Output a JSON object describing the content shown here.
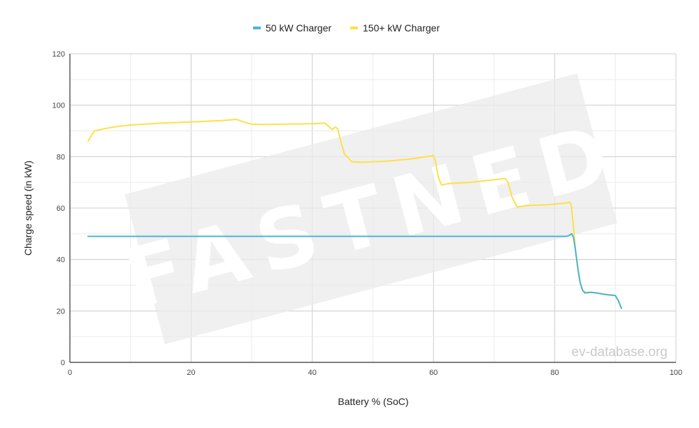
{
  "chart_data": {
    "type": "line",
    "xlabel": "Battery % (SoC)",
    "ylabel": "Charge speed (in kW)",
    "xlim": [
      0,
      100
    ],
    "ylim": [
      0,
      120
    ],
    "x_ticks": [
      0,
      20,
      40,
      60,
      80,
      100
    ],
    "y_ticks": [
      0,
      20,
      40,
      60,
      80,
      100,
      120
    ],
    "grid": true,
    "legend_position": "top-center",
    "series": [
      {
        "name": "50 kW Charger",
        "color": "#4ab4d6",
        "points": [
          [
            3,
            49
          ],
          [
            10,
            49
          ],
          [
            20,
            49
          ],
          [
            30,
            49
          ],
          [
            40,
            49
          ],
          [
            50,
            49
          ],
          [
            60,
            49
          ],
          [
            70,
            49
          ],
          [
            80,
            49
          ],
          [
            82,
            49
          ],
          [
            82.5,
            49.5
          ],
          [
            82.8,
            50
          ],
          [
            83.1,
            48.5
          ],
          [
            83.4,
            44
          ],
          [
            83.8,
            37
          ],
          [
            84.2,
            31
          ],
          [
            84.6,
            28
          ],
          [
            85,
            27
          ],
          [
            86,
            27.2
          ],
          [
            87,
            27
          ],
          [
            88,
            26.5
          ],
          [
            89,
            26.2
          ],
          [
            90,
            26
          ],
          [
            90.5,
            24
          ],
          [
            91,
            21
          ]
        ]
      },
      {
        "name": "150+ kW Charger",
        "color": "#fde047",
        "points": [
          [
            3,
            86
          ],
          [
            4,
            90
          ],
          [
            6,
            91
          ],
          [
            8,
            91.8
          ],
          [
            10,
            92.3
          ],
          [
            15,
            93
          ],
          [
            20,
            93.5
          ],
          [
            25,
            94
          ],
          [
            27.5,
            94.5
          ],
          [
            28.5,
            93.6
          ],
          [
            30,
            92.6
          ],
          [
            32,
            92.5
          ],
          [
            35,
            92.6
          ],
          [
            40,
            92.8
          ],
          [
            42,
            93
          ],
          [
            42.6,
            92
          ],
          [
            43.3,
            90.5
          ],
          [
            43.8,
            91.5
          ],
          [
            44.2,
            90.8
          ],
          [
            44.7,
            86
          ],
          [
            45.3,
            81
          ],
          [
            46.5,
            78
          ],
          [
            48,
            77.8
          ],
          [
            52,
            78.2
          ],
          [
            56,
            79
          ],
          [
            59.5,
            80.2
          ],
          [
            60,
            80.5
          ],
          [
            60.3,
            78.5
          ],
          [
            60.8,
            72
          ],
          [
            61.3,
            69
          ],
          [
            62.5,
            69.5
          ],
          [
            66,
            70
          ],
          [
            70,
            71
          ],
          [
            71.8,
            71.5
          ],
          [
            72.3,
            70
          ],
          [
            73,
            64
          ],
          [
            73.8,
            60.5
          ],
          [
            76,
            61
          ],
          [
            79,
            61.3
          ],
          [
            82,
            62
          ],
          [
            82.4,
            62.3
          ],
          [
            82.7,
            61.5
          ],
          [
            83,
            55
          ],
          [
            83.5,
            42
          ],
          [
            84,
            33
          ],
          [
            84.5,
            28.5
          ],
          [
            85,
            27.2
          ],
          [
            86,
            27.3
          ],
          [
            88,
            26.6
          ],
          [
            90,
            26
          ],
          [
            90.5,
            24
          ],
          [
            91,
            21
          ]
        ]
      }
    ]
  },
  "watermark": {
    "text": "FASTNED"
  },
  "credit": {
    "text": "ev-database.org"
  }
}
